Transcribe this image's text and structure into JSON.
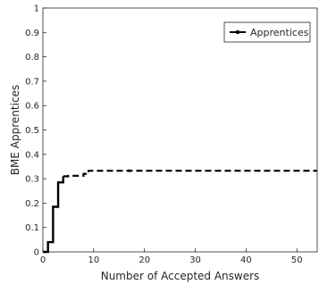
{
  "chart_data": {
    "type": "line",
    "title": "",
    "xlabel": "Number of Accepted Answers",
    "ylabel": "BME Apprentices",
    "xlim": [
      0,
      54
    ],
    "ylim": [
      0,
      1
    ],
    "x_ticks": [
      "0",
      "10",
      "20",
      "30",
      "40",
      "50"
    ],
    "y_ticks": [
      "0",
      "0.1",
      "0.2",
      "0.3",
      "0.4",
      "0.5",
      "0.6",
      "0.7",
      "0.8",
      "0.9",
      "1"
    ],
    "grid": false,
    "legend_position": "top-right",
    "series": [
      {
        "name": "Apprentices",
        "color": "#000000",
        "step": true,
        "x": [
          0,
          1,
          2,
          3,
          4,
          5,
          6,
          7,
          8,
          9,
          10,
          17,
          54
        ],
        "y": [
          0,
          0.04,
          0.185,
          0.285,
          0.31,
          0.312,
          0.312,
          0.312,
          0.32,
          0.333,
          0.333,
          0.333,
          0.333
        ],
        "solid_until_x": 4,
        "marker_x": [
          17
        ]
      }
    ]
  }
}
